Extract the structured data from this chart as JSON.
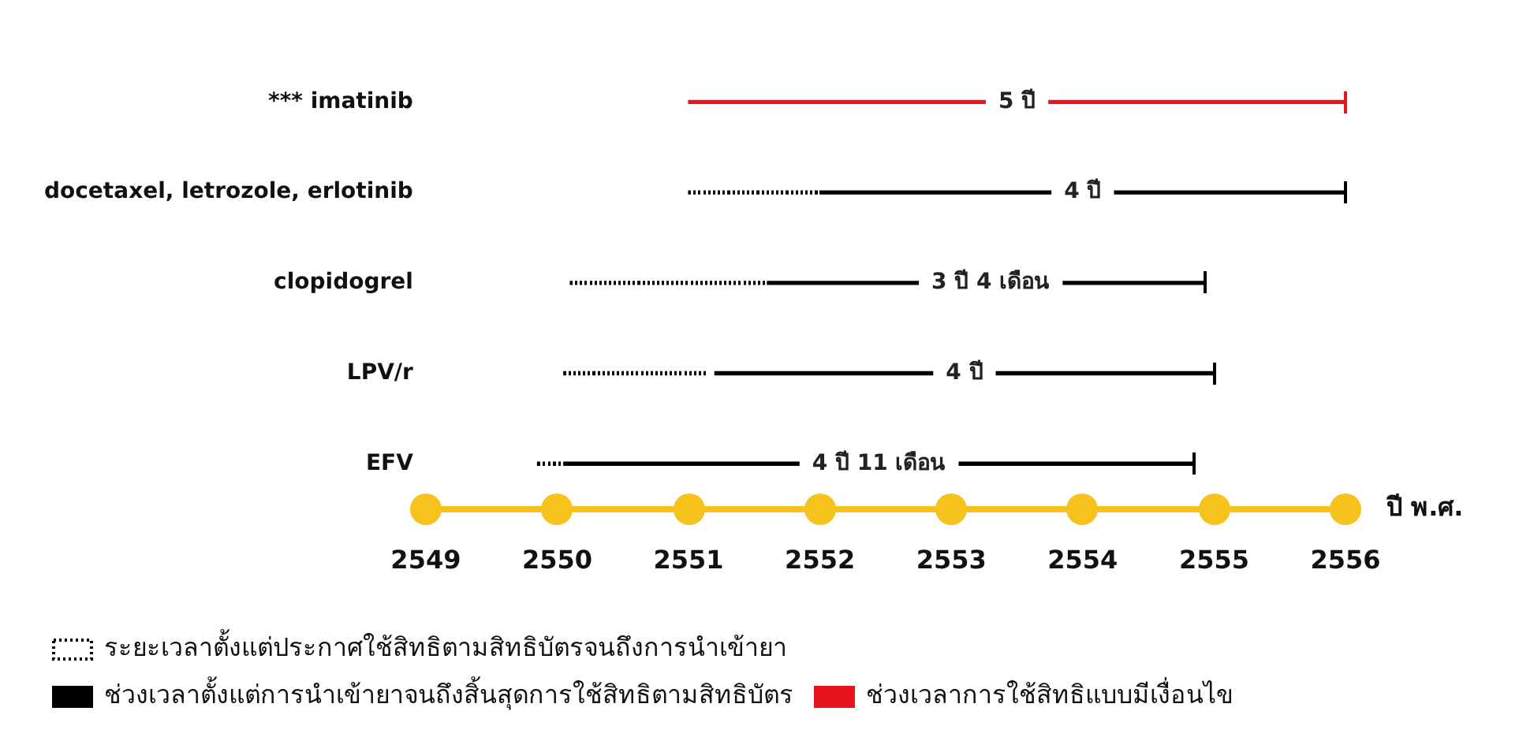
{
  "chart_data": {
    "type": "bar",
    "orientation": "horizontal",
    "xlabel": "ปี พ.ศ.",
    "categories": [
      "*** imatinib",
      "docetaxel, letrozole, erlotinib",
      "clopidogrel",
      "LPV/r",
      "EFV"
    ],
    "series": [
      {
        "name": "ระยะเวลาตั้งแต่ประกาศใช้สิทธิตามสิทธิบัตรจนถึงการนำเข้ายา",
        "color": "#000000",
        "line_style": "dotted",
        "base": [
          null,
          2551,
          2550.1,
          2550.05,
          2549.85
        ],
        "values": [
          null,
          1,
          1.5,
          1.1,
          0.2
        ]
      },
      {
        "name": "ช่วงเวลาตั้งแต่การนำเข้ายาจนถึงสิ้นสุดการใช้สิทธิตามสิทธิบัตร",
        "color": "#000000",
        "line_style": "solid",
        "base": [
          null,
          2552,
          2551.6,
          2551.2,
          2550.05
        ],
        "values": [
          null,
          4,
          3.33,
          3.8,
          4.8
        ]
      },
      {
        "name": "ช่วงเวลาการใช้สิทธิแบบมีเงื่อนไข",
        "color": "#e8141c",
        "line_style": "solid",
        "base": [
          2551,
          null,
          null,
          null,
          null
        ],
        "values": [
          5,
          null,
          null,
          null,
          null
        ]
      }
    ],
    "annotations": [
      {
        "text": "5 ปี",
        "x": 2553.5,
        "y": "*** imatinib"
      },
      {
        "text": "4 ปี",
        "x": 2554,
        "y": "docetaxel, letrozole, erlotinib"
      },
      {
        "text": "3 ปี 4 เดือน",
        "x": 2553.3,
        "y": "clopidogrel"
      },
      {
        "text": "4 ปี",
        "x": 2553.1,
        "y": "LPV/r"
      },
      {
        "text": "4 ปี 11 เดือน",
        "x": 2552.45,
        "y": "EFV"
      }
    ],
    "xlim": [
      2549,
      2556
    ],
    "xticks": [
      2549,
      2550,
      2551,
      2552,
      2553,
      2554,
      2555,
      2556
    ],
    "grid": false,
    "legend": "bottom"
  }
}
